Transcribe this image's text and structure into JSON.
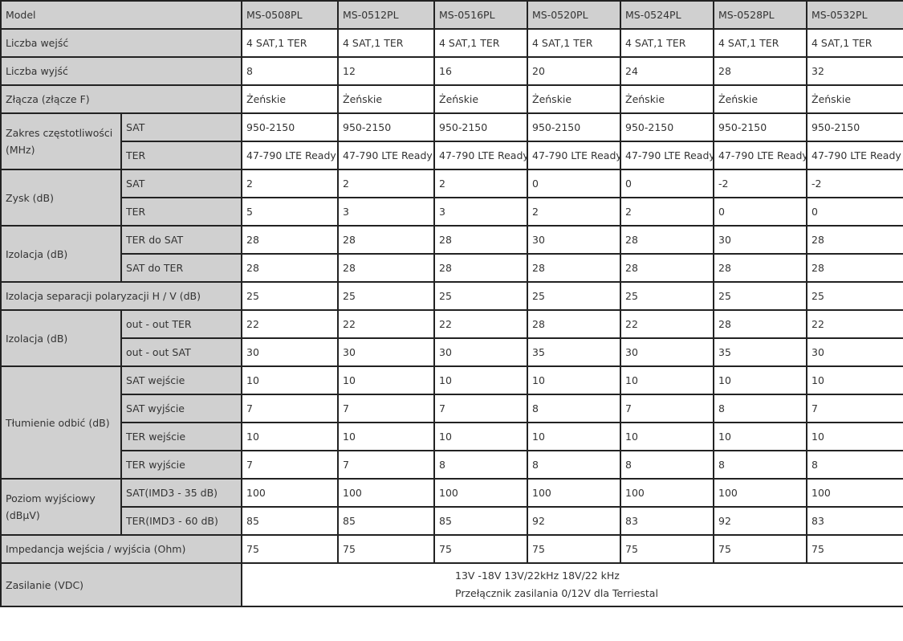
{
  "table": {
    "header": {
      "label": "Model",
      "models": [
        "MS-0508PL",
        "MS-0512PL",
        "MS-0516PL",
        "MS-0520PL",
        "MS-0524PL",
        "MS-0528PL",
        "MS-0532PL"
      ]
    },
    "groups": [
      {
        "label": "Liczba wejść",
        "rows": [
          {
            "sub": null,
            "values": [
              "4 SAT,1 TER",
              "4 SAT,1 TER",
              "4 SAT,1 TER",
              "4 SAT,1 TER",
              "4 SAT,1 TER",
              "4 SAT,1 TER",
              "4 SAT,1 TER"
            ]
          }
        ]
      },
      {
        "label": "Liczba wyjść",
        "rows": [
          {
            "sub": null,
            "values": [
              "8",
              "12",
              "16",
              "20",
              "24",
              "28",
              "32"
            ]
          }
        ]
      },
      {
        "label": "Złącza (złącze F)",
        "rows": [
          {
            "sub": null,
            "values": [
              "Żeńskie",
              "Żeńskie",
              "Żeńskie",
              "Żeńskie",
              "Żeńskie",
              "Żeńskie",
              "Żeńskie"
            ]
          }
        ]
      },
      {
        "label": "Zakres częstotliwości (MHz)",
        "rows": [
          {
            "sub": "SAT",
            "values": [
              "950-2150",
              "950-2150",
              "950-2150",
              "950-2150",
              "950-2150",
              "950-2150",
              "950-2150"
            ]
          },
          {
            "sub": "TER",
            "values": [
              "47-790 LTE Ready",
              "47-790 LTE Ready",
              "47-790 LTE Ready",
              "47-790 LTE Ready",
              "47-790 LTE Ready",
              "47-790 LTE Ready",
              "47-790 LTE Ready"
            ]
          }
        ]
      },
      {
        "label": "Zysk (dB)",
        "rows": [
          {
            "sub": "SAT",
            "values": [
              "2",
              "2",
              "2",
              "0",
              "0",
              "-2",
              "-2"
            ]
          },
          {
            "sub": "TER",
            "values": [
              "5",
              "3",
              "3",
              "2",
              "2",
              "0",
              "0"
            ]
          }
        ]
      },
      {
        "label": "Izolacja (dB)",
        "rows": [
          {
            "sub": "TER do SAT",
            "values": [
              "28",
              "28",
              "28",
              "30",
              "28",
              "30",
              "28"
            ]
          },
          {
            "sub": "SAT do TER",
            "values": [
              "28",
              "28",
              "28",
              "28",
              "28",
              "28",
              "28"
            ]
          }
        ]
      },
      {
        "label": "Izolacja separacji polaryzacji H / V (dB)",
        "rows": [
          {
            "sub": null,
            "values": [
              "25",
              "25",
              "25",
              "25",
              "25",
              "25",
              "25"
            ]
          }
        ]
      },
      {
        "label": "Izolacja (dB)",
        "rows": [
          {
            "sub": "out - out TER",
            "values": [
              "22",
              "22",
              "22",
              "28",
              "22",
              "28",
              "22"
            ]
          },
          {
            "sub": "out - out SAT",
            "values": [
              "30",
              "30",
              "30",
              "35",
              "30",
              "35",
              "30"
            ]
          }
        ]
      },
      {
        "label": "Tłumienie odbić (dB)",
        "rows": [
          {
            "sub": "SAT wejście",
            "values": [
              "10",
              "10",
              "10",
              "10",
              "10",
              "10",
              "10"
            ]
          },
          {
            "sub": "SAT wyjście",
            "values": [
              "7",
              "7",
              "7",
              "8",
              "7",
              "8",
              "7"
            ]
          },
          {
            "sub": "TER wejście",
            "values": [
              "10",
              "10",
              "10",
              "10",
              "10",
              "10",
              "10"
            ]
          },
          {
            "sub": "TER wyjście",
            "values": [
              "7",
              "7",
              "8",
              "8",
              "8",
              "8",
              "8"
            ]
          }
        ]
      },
      {
        "label": "Poziom wyjściowy (dBµV)",
        "rows": [
          {
            "sub": "SAT(IMD3 - 35 dB)",
            "values": [
              "100",
              "100",
              "100",
              "100",
              "100",
              "100",
              "100"
            ]
          },
          {
            "sub": "TER(IMD3 - 60 dB)",
            "values": [
              "85",
              "85",
              "85",
              "92",
              "83",
              "92",
              "83"
            ]
          }
        ]
      },
      {
        "label": "Impedancja wejścia / wyjścia (Ohm)",
        "rows": [
          {
            "sub": null,
            "values": [
              "75",
              "75",
              "75",
              "75",
              "75",
              "75",
              "75"
            ]
          }
        ]
      }
    ],
    "power": {
      "label": "Zasilanie (VDC)",
      "line1": "13V -18V 13V/22kHz 18V/22 kHz",
      "line2": "Przełącznik zasilania 0/12V dla Terriestal"
    }
  }
}
